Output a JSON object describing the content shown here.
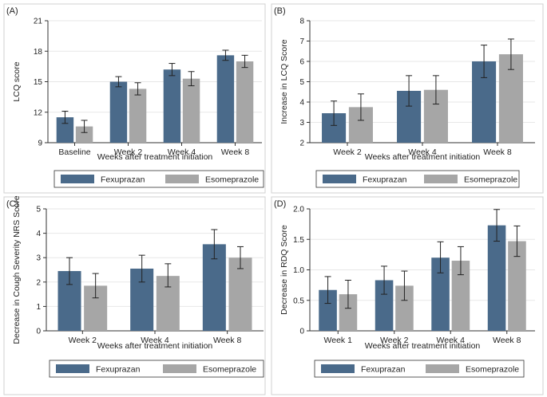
{
  "colors": {
    "series1": "#4a6a8a",
    "series2": "#a6a6a6",
    "frame": "#d0d0d0",
    "grid": "#e7e7e7",
    "text": "#222222"
  },
  "chart_data": [
    {
      "type": "bar",
      "panel_label": "(A)",
      "title": "",
      "xlabel": "Weeks after treatment initiation",
      "ylabel": "LCQ score",
      "ylim": [
        9,
        21
      ],
      "yticks": [
        9,
        12,
        15,
        18,
        21
      ],
      "categories": [
        "Baseline",
        "Week 2",
        "Week 4",
        "Week 8"
      ],
      "series": [
        {
          "name": "Fexuprazan",
          "values": [
            11.5,
            15.0,
            16.2,
            17.6
          ],
          "err_low": [
            10.9,
            14.5,
            15.6,
            17.1
          ],
          "err_high": [
            12.1,
            15.5,
            16.8,
            18.1
          ]
        },
        {
          "name": "Esomeprazole",
          "values": [
            10.6,
            14.3,
            15.3,
            17.0
          ],
          "err_low": [
            10.0,
            13.7,
            14.6,
            16.4
          ],
          "err_high": [
            11.2,
            14.9,
            16.0,
            17.6
          ]
        }
      ],
      "legend": [
        "Fexuprazan",
        "Esomeprazole"
      ],
      "legend_position": "bottom"
    },
    {
      "type": "bar",
      "panel_label": "(B)",
      "title": "",
      "xlabel": "Weeks after treatment initiation",
      "ylabel": "Increase in LCQ Score",
      "ylim": [
        2,
        8
      ],
      "yticks": [
        2,
        3,
        4,
        5,
        6,
        7,
        8
      ],
      "categories": [
        "Week 2",
        "Week 4",
        "Week 8"
      ],
      "series": [
        {
          "name": "Fexuprazan",
          "values": [
            3.45,
            4.55,
            6.0
          ],
          "err_low": [
            2.85,
            3.8,
            5.2
          ],
          "err_high": [
            4.05,
            5.3,
            6.8
          ]
        },
        {
          "name": "Esomeprazole",
          "values": [
            3.75,
            4.6,
            6.35
          ],
          "err_low": [
            3.1,
            3.9,
            5.6
          ],
          "err_high": [
            4.4,
            5.3,
            7.1
          ]
        }
      ],
      "legend": [
        "Fexuprazan",
        "Esomeprazole"
      ],
      "legend_position": "bottom"
    },
    {
      "type": "bar",
      "panel_label": "(C)",
      "title": "",
      "xlabel": "Weeks after treatment initiation",
      "ylabel": "Decrease in Cough Severity NRS Score",
      "ylim": [
        0,
        5
      ],
      "yticks": [
        0,
        1,
        2,
        3,
        4,
        5
      ],
      "categories": [
        "Week 2",
        "Week 4",
        "Week 8"
      ],
      "series": [
        {
          "name": "Fexuprazan",
          "values": [
            2.45,
            2.55,
            3.55
          ],
          "err_low": [
            1.9,
            2.0,
            2.95
          ],
          "err_high": [
            3.0,
            3.1,
            4.15
          ]
        },
        {
          "name": "Esomeprazole",
          "values": [
            1.85,
            2.25,
            3.0
          ],
          "err_low": [
            1.35,
            1.8,
            2.55
          ],
          "err_high": [
            2.35,
            2.75,
            3.45
          ]
        }
      ],
      "legend": [
        "Fexuprazan",
        "Esomeprazole"
      ],
      "legend_position": "bottom"
    },
    {
      "type": "bar",
      "panel_label": "(D)",
      "title": "",
      "xlabel": "Weeks after treatment initiation",
      "ylabel": "Decrease in RDQ Score",
      "ylim": [
        0,
        2
      ],
      "yticks": [
        "0",
        "0.5",
        "1.0",
        "1.5",
        "2.0"
      ],
      "categories": [
        "Week 1",
        "Week 2",
        "Week 4",
        "Week 8"
      ],
      "series": [
        {
          "name": "Fexuprazan",
          "values": [
            0.67,
            0.83,
            1.2,
            1.73
          ],
          "err_low": [
            0.45,
            0.6,
            0.95,
            1.47
          ],
          "err_high": [
            0.89,
            1.06,
            1.46,
            1.99
          ]
        },
        {
          "name": "Esomeprazole",
          "values": [
            0.6,
            0.74,
            1.15,
            1.47
          ],
          "err_low": [
            0.37,
            0.5,
            0.92,
            1.22
          ],
          "err_high": [
            0.83,
            0.98,
            1.38,
            1.72
          ]
        }
      ],
      "legend": [
        "Fexuprazan",
        "Esomeprazole"
      ],
      "legend_position": "bottom"
    }
  ]
}
